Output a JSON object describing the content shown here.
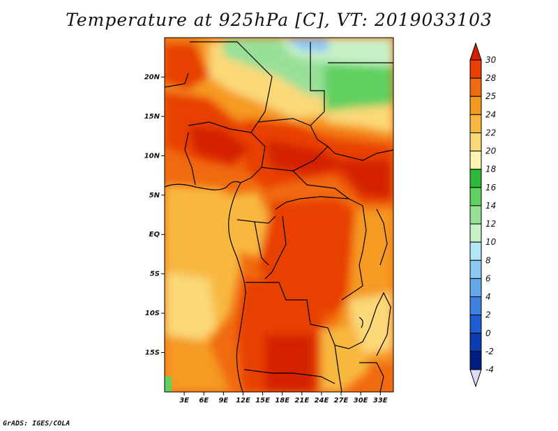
{
  "title": "Temperature at 925hPa [C], VT: 2019033103",
  "credit": "GrADS: IGES/COLA",
  "map": {
    "lon_range": [
      0,
      35
    ],
    "lat_range": [
      -20,
      25
    ],
    "lat_ticks": [
      {
        "value": 20,
        "label": "20N"
      },
      {
        "value": 15,
        "label": "15N"
      },
      {
        "value": 10,
        "label": "10N"
      },
      {
        "value": 5,
        "label": "5N"
      },
      {
        "value": 0,
        "label": "EQ"
      },
      {
        "value": -5,
        "label": "5S"
      },
      {
        "value": -10,
        "label": "10S"
      },
      {
        "value": -15,
        "label": "15S"
      }
    ],
    "lon_ticks": [
      {
        "value": 3,
        "label": "3E"
      },
      {
        "value": 6,
        "label": "6E"
      },
      {
        "value": 9,
        "label": "9E"
      },
      {
        "value": 12,
        "label": "12E"
      },
      {
        "value": 15,
        "label": "15E"
      },
      {
        "value": 18,
        "label": "18E"
      },
      {
        "value": 21,
        "label": "21E"
      },
      {
        "value": 24,
        "label": "24E"
      },
      {
        "value": 27,
        "label": "27E"
      },
      {
        "value": 30,
        "label": "30E"
      },
      {
        "value": 33,
        "label": "33E"
      }
    ]
  },
  "colorbar": {
    "levels": [
      {
        "label": "30",
        "color": "#d42000"
      },
      {
        "label": "28",
        "color": "#e84000"
      },
      {
        "label": "25",
        "color": "#f06a10"
      },
      {
        "label": "24",
        "color": "#f59a20"
      },
      {
        "label": "22",
        "color": "#f8b840"
      },
      {
        "label": "20",
        "color": "#fbd878"
      },
      {
        "label": "18",
        "color": "#fef5b0"
      },
      {
        "label": "16",
        "color": "#2db83a"
      },
      {
        "label": "14",
        "color": "#60d060"
      },
      {
        "label": "12",
        "color": "#98e098"
      },
      {
        "label": "10",
        "color": "#c8f0c8"
      },
      {
        "label": "8",
        "color": "#b4e6fa"
      },
      {
        "label": "6",
        "color": "#8cc8f4"
      },
      {
        "label": "4",
        "color": "#64a8ec"
      },
      {
        "label": "2",
        "color": "#3c82e0"
      },
      {
        "label": "0",
        "color": "#1e5cd2"
      },
      {
        "label": "-2",
        "color": "#0a3cb4"
      },
      {
        "label": "-4",
        "color": "#001e82"
      }
    ],
    "under_color": "#dcdcf5",
    "over_color": "#d42000"
  }
}
